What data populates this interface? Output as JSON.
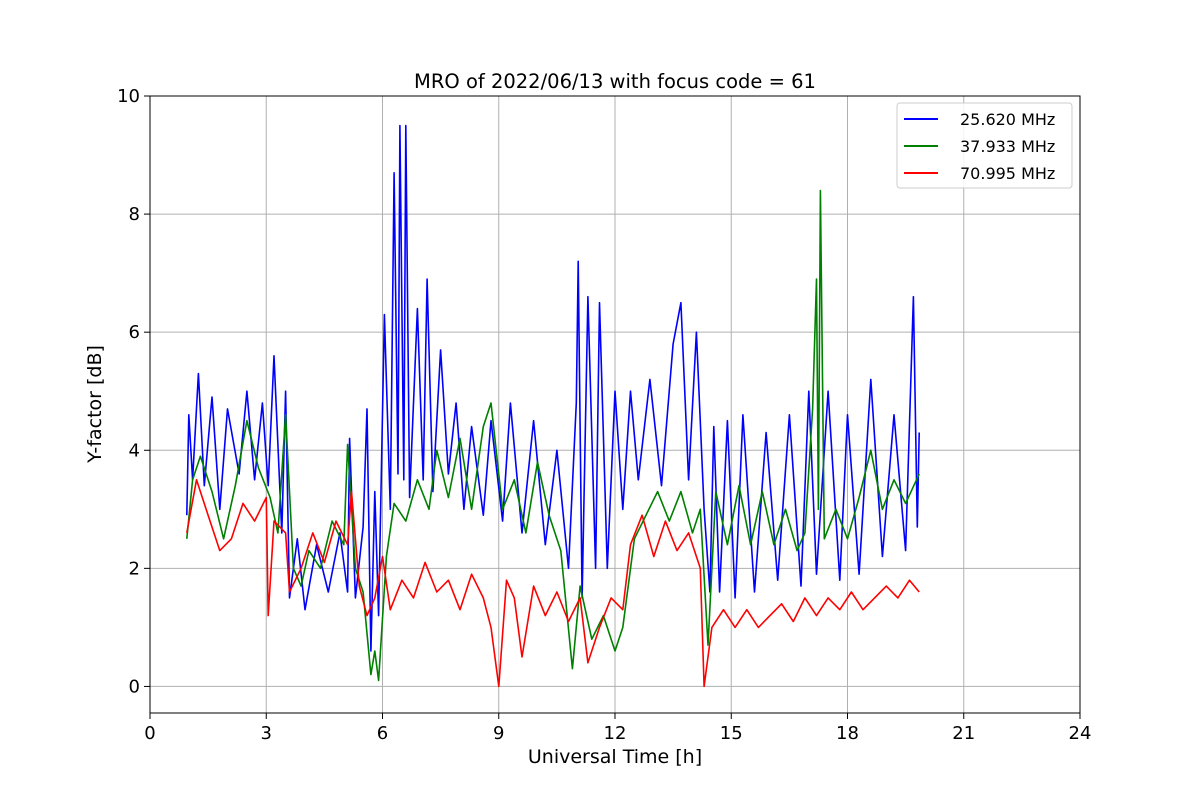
{
  "chart_data": {
    "type": "line",
    "title": "MRO of 2022/06/13 with focus code = 61",
    "xlabel": "Universal Time [h]",
    "ylabel": "Y-factor [dB]",
    "xlim": [
      0,
      24
    ],
    "ylim": [
      -0.45,
      10
    ],
    "xticks": [
      0,
      3,
      6,
      9,
      12,
      15,
      18,
      21,
      24
    ],
    "yticks": [
      0,
      2,
      4,
      6,
      8,
      10
    ],
    "grid": true,
    "legend_position": "top-right",
    "series": [
      {
        "name": "25.620 MHz",
        "color": "#0000ff",
        "points": [
          [
            0.95,
            2.9
          ],
          [
            1.0,
            4.6
          ],
          [
            1.1,
            3.5
          ],
          [
            1.25,
            5.3
          ],
          [
            1.4,
            3.4
          ],
          [
            1.6,
            4.9
          ],
          [
            1.8,
            3.0
          ],
          [
            2.0,
            4.7
          ],
          [
            2.3,
            3.6
          ],
          [
            2.5,
            5.0
          ],
          [
            2.7,
            3.5
          ],
          [
            2.9,
            4.8
          ],
          [
            3.05,
            3.4
          ],
          [
            3.2,
            5.6
          ],
          [
            3.4,
            2.6
          ],
          [
            3.5,
            5.0
          ],
          [
            3.6,
            1.5
          ],
          [
            3.8,
            2.5
          ],
          [
            4.0,
            1.3
          ],
          [
            4.3,
            2.4
          ],
          [
            4.6,
            1.6
          ],
          [
            4.9,
            2.6
          ],
          [
            5.1,
            1.6
          ],
          [
            5.15,
            4.2
          ],
          [
            5.3,
            1.5
          ],
          [
            5.5,
            2.7
          ],
          [
            5.6,
            4.7
          ],
          [
            5.7,
            0.6
          ],
          [
            5.8,
            3.3
          ],
          [
            5.9,
            1.2
          ],
          [
            6.05,
            6.3
          ],
          [
            6.2,
            3.0
          ],
          [
            6.3,
            8.7
          ],
          [
            6.4,
            3.6
          ],
          [
            6.45,
            9.5
          ],
          [
            6.55,
            3.5
          ],
          [
            6.6,
            9.5
          ],
          [
            6.7,
            3.2
          ],
          [
            6.9,
            6.4
          ],
          [
            7.05,
            3.5
          ],
          [
            7.15,
            6.9
          ],
          [
            7.3,
            3.3
          ],
          [
            7.5,
            5.7
          ],
          [
            7.7,
            3.6
          ],
          [
            7.9,
            4.8
          ],
          [
            8.1,
            3.0
          ],
          [
            8.3,
            4.4
          ],
          [
            8.6,
            2.9
          ],
          [
            8.8,
            4.5
          ],
          [
            9.1,
            2.8
          ],
          [
            9.3,
            4.8
          ],
          [
            9.6,
            2.6
          ],
          [
            9.9,
            4.5
          ],
          [
            10.2,
            2.4
          ],
          [
            10.5,
            4.0
          ],
          [
            10.8,
            2.0
          ],
          [
            11.0,
            4.8
          ],
          [
            11.05,
            7.2
          ],
          [
            11.15,
            1.5
          ],
          [
            11.3,
            6.6
          ],
          [
            11.5,
            2.0
          ],
          [
            11.6,
            6.5
          ],
          [
            11.8,
            2.0
          ],
          [
            12.0,
            5.0
          ],
          [
            12.2,
            3.0
          ],
          [
            12.4,
            5.0
          ],
          [
            12.6,
            3.5
          ],
          [
            12.9,
            5.2
          ],
          [
            13.2,
            3.4
          ],
          [
            13.5,
            5.8
          ],
          [
            13.7,
            6.5
          ],
          [
            13.9,
            3.5
          ],
          [
            14.1,
            6.0
          ],
          [
            14.3,
            3.0
          ],
          [
            14.45,
            1.6
          ],
          [
            14.55,
            4.4
          ],
          [
            14.7,
            1.6
          ],
          [
            14.9,
            4.5
          ],
          [
            15.1,
            1.5
          ],
          [
            15.3,
            4.6
          ],
          [
            15.6,
            1.6
          ],
          [
            15.9,
            4.3
          ],
          [
            16.2,
            1.8
          ],
          [
            16.5,
            4.6
          ],
          [
            16.8,
            1.7
          ],
          [
            17.0,
            5.0
          ],
          [
            17.2,
            1.9
          ],
          [
            17.5,
            5.0
          ],
          [
            17.8,
            1.8
          ],
          [
            18.0,
            4.6
          ],
          [
            18.3,
            1.9
          ],
          [
            18.6,
            5.2
          ],
          [
            18.9,
            2.2
          ],
          [
            19.2,
            4.6
          ],
          [
            19.5,
            2.3
          ],
          [
            19.7,
            6.6
          ],
          [
            19.8,
            2.7
          ],
          [
            19.85,
            4.3
          ]
        ]
      },
      {
        "name": "37.933 MHz",
        "color": "#008000",
        "points": [
          [
            0.95,
            2.5
          ],
          [
            1.1,
            3.5
          ],
          [
            1.3,
            3.9
          ],
          [
            1.6,
            3.3
          ],
          [
            1.9,
            2.5
          ],
          [
            2.2,
            3.4
          ],
          [
            2.5,
            4.5
          ],
          [
            2.8,
            3.7
          ],
          [
            3.1,
            3.2
          ],
          [
            3.3,
            2.6
          ],
          [
            3.5,
            4.6
          ],
          [
            3.7,
            2.0
          ],
          [
            3.9,
            1.7
          ],
          [
            4.1,
            2.3
          ],
          [
            4.4,
            2.0
          ],
          [
            4.7,
            2.8
          ],
          [
            5.0,
            2.4
          ],
          [
            5.1,
            4.1
          ],
          [
            5.3,
            2.0
          ],
          [
            5.5,
            1.6
          ],
          [
            5.7,
            0.2
          ],
          [
            5.8,
            0.6
          ],
          [
            5.9,
            0.1
          ],
          [
            6.1,
            2.2
          ],
          [
            6.3,
            3.1
          ],
          [
            6.6,
            2.8
          ],
          [
            6.9,
            3.5
          ],
          [
            7.2,
            3.0
          ],
          [
            7.4,
            4.0
          ],
          [
            7.7,
            3.2
          ],
          [
            8.0,
            4.2
          ],
          [
            8.3,
            3.0
          ],
          [
            8.6,
            4.4
          ],
          [
            8.8,
            4.8
          ],
          [
            9.1,
            3.0
          ],
          [
            9.4,
            3.5
          ],
          [
            9.7,
            2.6
          ],
          [
            10.0,
            3.8
          ],
          [
            10.3,
            2.9
          ],
          [
            10.6,
            2.3
          ],
          [
            10.9,
            0.3
          ],
          [
            11.1,
            1.7
          ],
          [
            11.4,
            0.8
          ],
          [
            11.7,
            1.2
          ],
          [
            12.0,
            0.6
          ],
          [
            12.2,
            1.0
          ],
          [
            12.5,
            2.5
          ],
          [
            12.8,
            2.9
          ],
          [
            13.1,
            3.3
          ],
          [
            13.4,
            2.8
          ],
          [
            13.7,
            3.3
          ],
          [
            14.0,
            2.6
          ],
          [
            14.2,
            3.0
          ],
          [
            14.4,
            0.7
          ],
          [
            14.6,
            3.3
          ],
          [
            14.9,
            2.4
          ],
          [
            15.2,
            3.4
          ],
          [
            15.5,
            2.4
          ],
          [
            15.8,
            3.3
          ],
          [
            16.1,
            2.4
          ],
          [
            16.4,
            3.0
          ],
          [
            16.7,
            2.3
          ],
          [
            16.9,
            2.6
          ],
          [
            17.1,
            4.7
          ],
          [
            17.2,
            6.9
          ],
          [
            17.25,
            3.0
          ],
          [
            17.3,
            8.4
          ],
          [
            17.4,
            2.5
          ],
          [
            17.7,
            3.0
          ],
          [
            18.0,
            2.5
          ],
          [
            18.3,
            3.2
          ],
          [
            18.6,
            4.0
          ],
          [
            18.9,
            3.0
          ],
          [
            19.2,
            3.5
          ],
          [
            19.5,
            3.1
          ],
          [
            19.85,
            3.6
          ]
        ]
      },
      {
        "name": "70.995 MHz",
        "color": "#ff0000",
        "points": [
          [
            0.95,
            2.6
          ],
          [
            1.2,
            3.5
          ],
          [
            1.5,
            2.9
          ],
          [
            1.8,
            2.3
          ],
          [
            2.1,
            2.5
          ],
          [
            2.4,
            3.1
          ],
          [
            2.7,
            2.8
          ],
          [
            3.0,
            3.2
          ],
          [
            3.05,
            1.2
          ],
          [
            3.2,
            2.8
          ],
          [
            3.5,
            2.6
          ],
          [
            3.6,
            1.6
          ],
          [
            3.9,
            2.0
          ],
          [
            4.2,
            2.6
          ],
          [
            4.5,
            2.1
          ],
          [
            4.8,
            2.8
          ],
          [
            5.1,
            2.4
          ],
          [
            5.2,
            3.3
          ],
          [
            5.4,
            1.7
          ],
          [
            5.6,
            1.2
          ],
          [
            5.8,
            1.5
          ],
          [
            6.0,
            2.2
          ],
          [
            6.2,
            1.3
          ],
          [
            6.5,
            1.8
          ],
          [
            6.8,
            1.5
          ],
          [
            7.1,
            2.1
          ],
          [
            7.4,
            1.6
          ],
          [
            7.7,
            1.8
          ],
          [
            8.0,
            1.3
          ],
          [
            8.3,
            1.9
          ],
          [
            8.6,
            1.5
          ],
          [
            8.8,
            1.0
          ],
          [
            9.0,
            0.0
          ],
          [
            9.2,
            1.8
          ],
          [
            9.4,
            1.5
          ],
          [
            9.6,
            0.5
          ],
          [
            9.9,
            1.7
          ],
          [
            10.2,
            1.2
          ],
          [
            10.5,
            1.6
          ],
          [
            10.8,
            1.1
          ],
          [
            11.1,
            1.5
          ],
          [
            11.3,
            0.4
          ],
          [
            11.6,
            1.0
          ],
          [
            11.9,
            1.5
          ],
          [
            12.2,
            1.3
          ],
          [
            12.4,
            2.4
          ],
          [
            12.7,
            2.9
          ],
          [
            13.0,
            2.2
          ],
          [
            13.3,
            2.8
          ],
          [
            13.6,
            2.3
          ],
          [
            13.9,
            2.6
          ],
          [
            14.2,
            2.0
          ],
          [
            14.3,
            0.0
          ],
          [
            14.5,
            1.0
          ],
          [
            14.8,
            1.3
          ],
          [
            15.1,
            1.0
          ],
          [
            15.4,
            1.3
          ],
          [
            15.7,
            1.0
          ],
          [
            16.0,
            1.2
          ],
          [
            16.3,
            1.4
          ],
          [
            16.6,
            1.1
          ],
          [
            16.9,
            1.5
          ],
          [
            17.2,
            1.2
          ],
          [
            17.5,
            1.5
          ],
          [
            17.8,
            1.3
          ],
          [
            18.1,
            1.6
          ],
          [
            18.4,
            1.3
          ],
          [
            18.7,
            1.5
          ],
          [
            19.0,
            1.7
          ],
          [
            19.3,
            1.5
          ],
          [
            19.6,
            1.8
          ],
          [
            19.85,
            1.6
          ]
        ]
      }
    ]
  }
}
